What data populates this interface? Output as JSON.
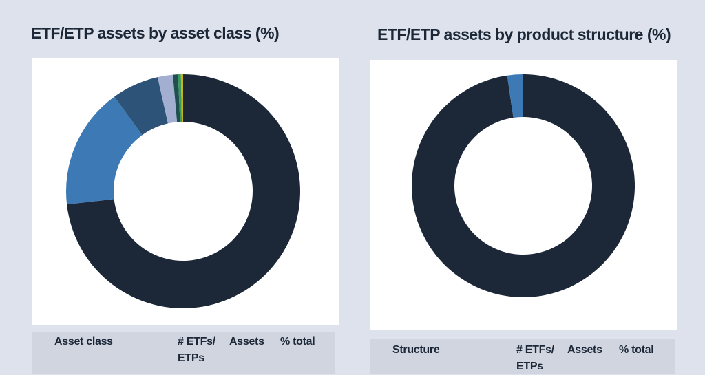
{
  "chart_data": [
    {
      "type": "donut",
      "title": "ETF/ETP assets by asset class (%)",
      "categories": [
        null,
        null,
        null,
        null,
        null,
        null,
        null
      ],
      "values": [
        73.2,
        16.8,
        6.5,
        2.1,
        0.7,
        0.4,
        0.3
      ],
      "colors": [
        "#1c2838",
        "#3d7ab5",
        "#2d5478",
        "#a3afd1",
        "#1f4f4f",
        "#3a9a5a",
        "#c8b21e"
      ]
    },
    {
      "type": "donut",
      "title": "ETF/ETP assets by product structure (%)",
      "categories": [
        null,
        null
      ],
      "values": [
        97.7,
        2.3
      ],
      "colors": [
        "#1c2838",
        "#3d7ab5"
      ]
    }
  ],
  "tables": [
    {
      "header": [
        "Asset class",
        "# ETFs/ ETPs",
        "Assets",
        "% total"
      ]
    },
    {
      "header": [
        "Structure",
        "# ETFs/ ETPs",
        "Assets",
        "% total"
      ]
    }
  ]
}
